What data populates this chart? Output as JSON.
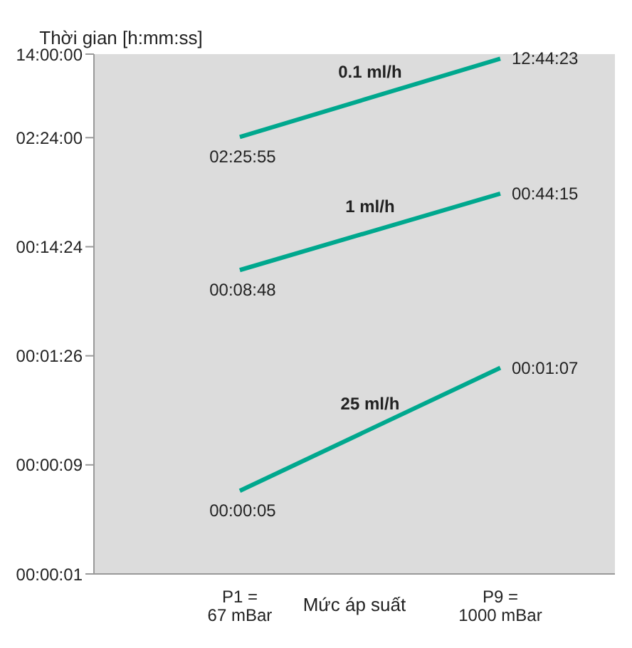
{
  "chart_data": {
    "type": "line",
    "ylabel": "Thời gian [h:mm:ss]",
    "xlabel": "Mức áp suất",
    "categories": [
      "P1 = 67 mBar",
      "P9 = 1000 mBar"
    ],
    "series": [
      {
        "name": "0.1 ml/h",
        "color": "#00a88e",
        "values": [
          8755,
          45863
        ],
        "value_labels": [
          "02:25:55",
          "12:44:23"
        ]
      },
      {
        "name": "1 ml/h",
        "color": "#00a88e",
        "values": [
          528,
          2655
        ],
        "value_labels": [
          "00:08:48",
          "00:44:15"
        ]
      },
      {
        "name": "25 ml/h",
        "color": "#00a88e",
        "values": [
          5,
          67
        ],
        "value_labels": [
          "00:00:05",
          "00:01:07"
        ]
      }
    ],
    "log": "y",
    "ylim": [
      0.864,
      50400
    ],
    "yticks": [
      {
        "value": 0.864,
        "label": "00:00:01"
      },
      {
        "value": 8.64,
        "label": "00:00:09"
      },
      {
        "value": 86.4,
        "label": "00:01:26"
      },
      {
        "value": 864,
        "label": "00:14:24"
      },
      {
        "value": 8640,
        "label": "02:24:00"
      },
      {
        "value": 50400,
        "label": "14:00:00"
      }
    ],
    "marker": "none",
    "line_style": "solid"
  }
}
